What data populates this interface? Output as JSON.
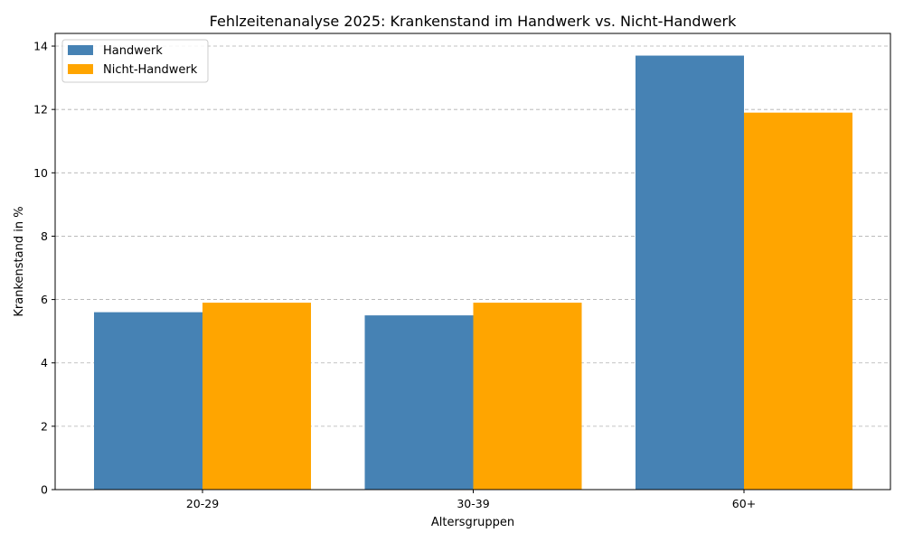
{
  "chart_data": {
    "type": "bar",
    "title": "Fehlzeitenanalyse 2025: Krankenstand im Handwerk vs. Nicht-Handwerk",
    "xlabel": "Altersgruppen",
    "ylabel": "Krankenstand in %",
    "categories": [
      "20-29",
      "30-39",
      "60+"
    ],
    "series": [
      {
        "name": "Handwerk",
        "color": "#4682b4",
        "values": [
          5.6,
          5.5,
          13.7
        ]
      },
      {
        "name": "Nicht-Handwerk",
        "color": "#ffa500",
        "values": [
          5.9,
          5.9,
          11.9
        ]
      }
    ],
    "ylim": [
      0,
      14.4
    ],
    "yticks": [
      0,
      2,
      4,
      6,
      8,
      10,
      12,
      14
    ],
    "grid": "y-dashed",
    "legend_position": "top-left"
  }
}
